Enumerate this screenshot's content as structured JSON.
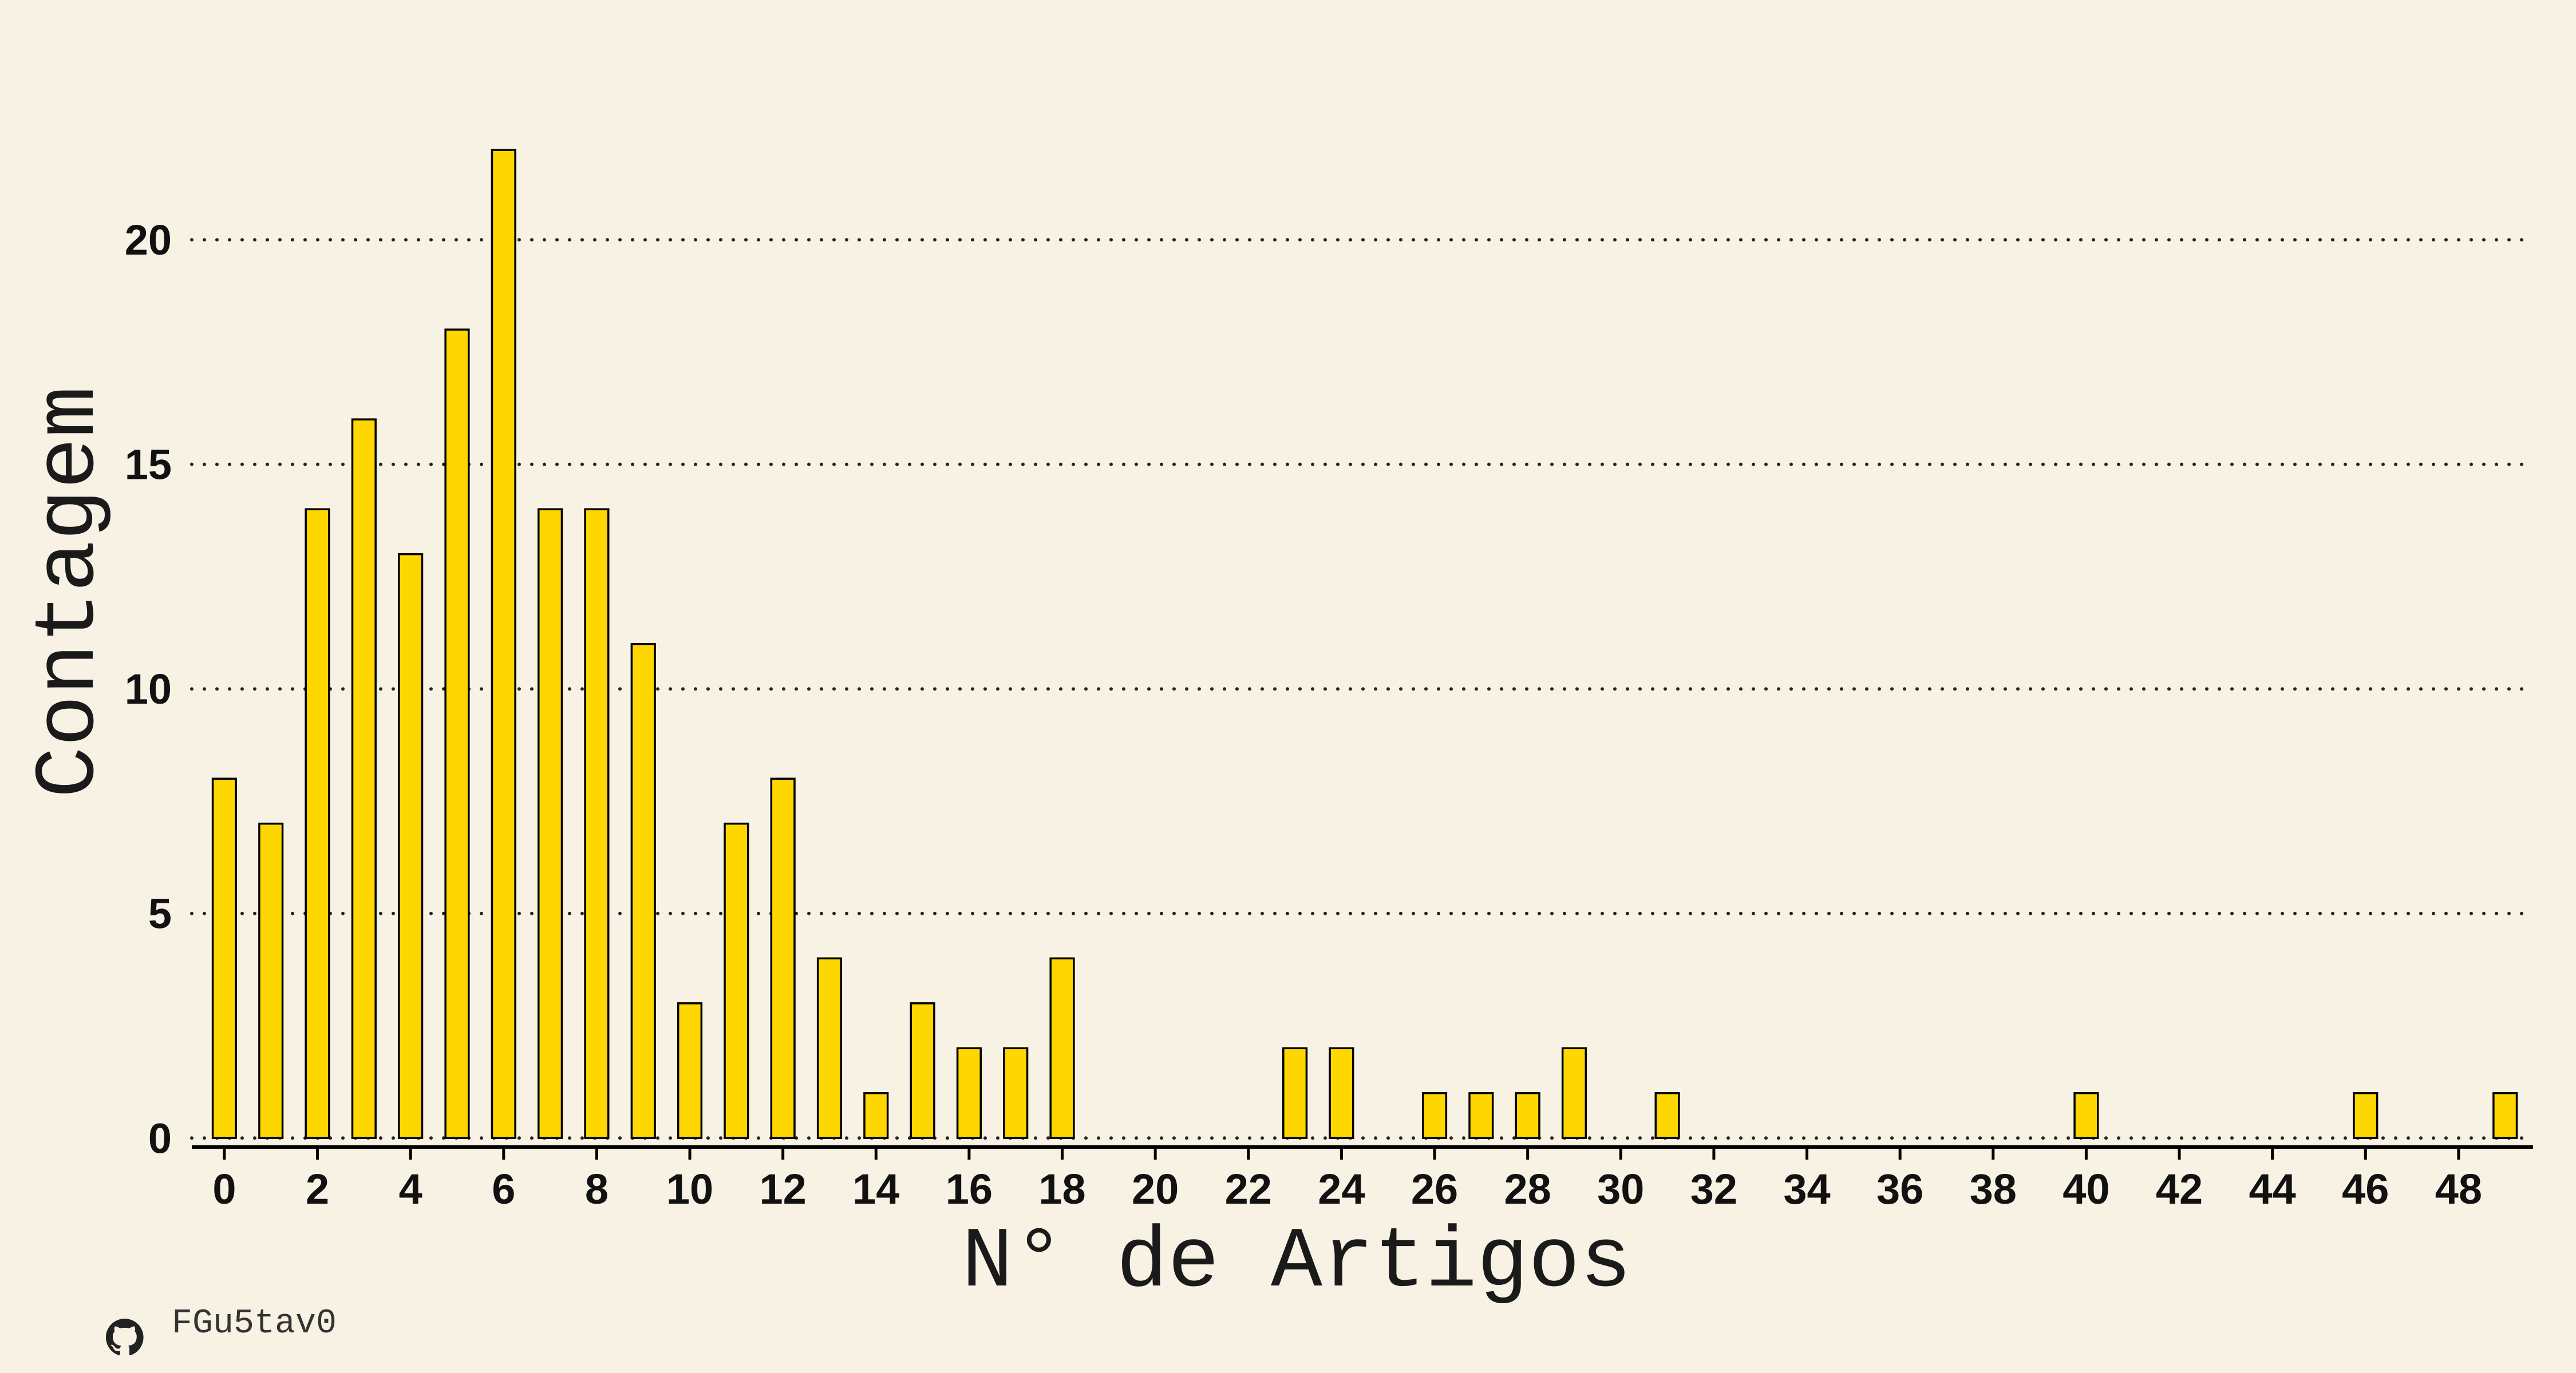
{
  "chart_data": {
    "type": "bar",
    "x": [
      0,
      1,
      2,
      3,
      4,
      5,
      6,
      7,
      8,
      9,
      10,
      11,
      12,
      13,
      14,
      15,
      16,
      17,
      18,
      19,
      20,
      21,
      22,
      23,
      24,
      25,
      26,
      27,
      28,
      29,
      30,
      31,
      32,
      33,
      34,
      35,
      36,
      37,
      38,
      39,
      40,
      41,
      42,
      43,
      44,
      45,
      46,
      47,
      48,
      49
    ],
    "values": [
      8,
      7,
      14,
      16,
      13,
      18,
      22,
      14,
      14,
      11,
      3,
      7,
      8,
      4,
      1,
      3,
      2,
      2,
      4,
      0,
      0,
      0,
      0,
      2,
      2,
      0,
      1,
      1,
      1,
      2,
      0,
      1,
      0,
      0,
      0,
      0,
      0,
      0,
      0,
      0,
      1,
      0,
      0,
      0,
      0,
      0,
      1,
      0,
      0,
      1
    ],
    "xlabel": "N° de Artigos",
    "ylabel": "Contagem",
    "xticks": [
      0,
      2,
      4,
      6,
      8,
      10,
      12,
      14,
      16,
      18,
      20,
      22,
      24,
      26,
      28,
      30,
      32,
      34,
      36,
      38,
      40,
      42,
      44,
      46,
      48
    ],
    "yticks": [
      0,
      5,
      10,
      15,
      20
    ],
    "xlim": [
      -0.7,
      49.6
    ],
    "ylim": [
      -0.2,
      23.3
    ],
    "grid": "horizontal-dotted",
    "bar_color": "#ffd700",
    "edge_color": "#000000",
    "background_color": "#f8f2e5"
  },
  "credit": {
    "icon": "github-icon",
    "handle": "FGu5tav0"
  }
}
